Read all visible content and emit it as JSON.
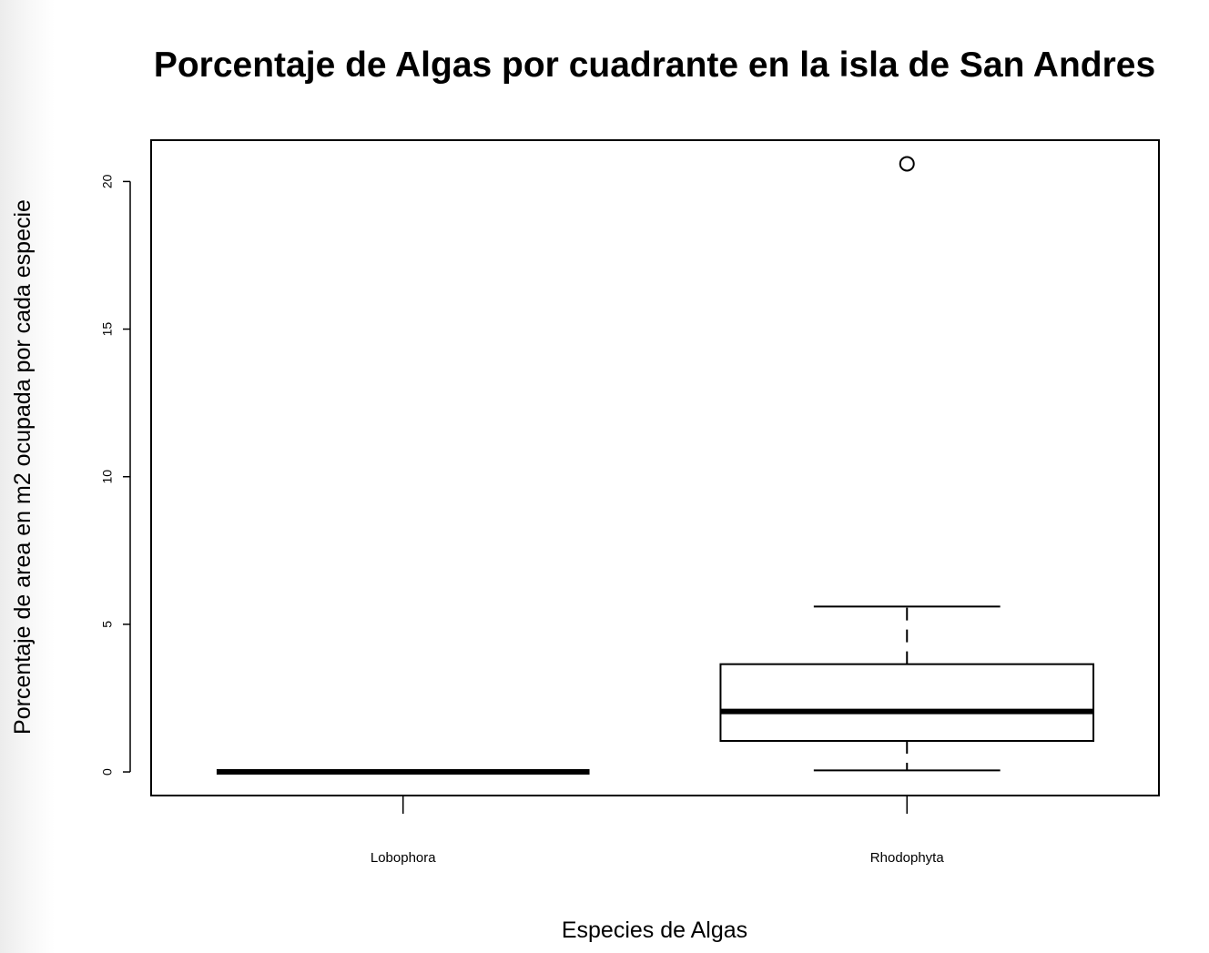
{
  "chart_data": {
    "type": "boxplot",
    "title": "Porcentaje de Algas por cuadrante en la isla de San Andres",
    "xlabel": "Especies de Algas",
    "ylabel": "Porcentaje de area en m2 ocupada por cada especie",
    "ylim": [
      -0.8,
      21.4
    ],
    "yticks": [
      "0",
      "5",
      "10",
      "15",
      "20"
    ],
    "categories": [
      "Lobophora",
      "Rhodophyta"
    ],
    "boxes": [
      {
        "name": "Lobophora",
        "whisker_low": 0,
        "q1": 0,
        "median": 0,
        "q3": 0,
        "whisker_high": 0,
        "outliers": []
      },
      {
        "name": "Rhodophyta",
        "whisker_low": 0.05,
        "q1": 1.05,
        "median": 2.05,
        "q3": 3.65,
        "whisker_high": 5.6,
        "outliers": [
          20.6
        ]
      }
    ],
    "grid": false,
    "legend": "none",
    "colors": {
      "stroke": "#000000",
      "fill": "#ffffff"
    }
  }
}
